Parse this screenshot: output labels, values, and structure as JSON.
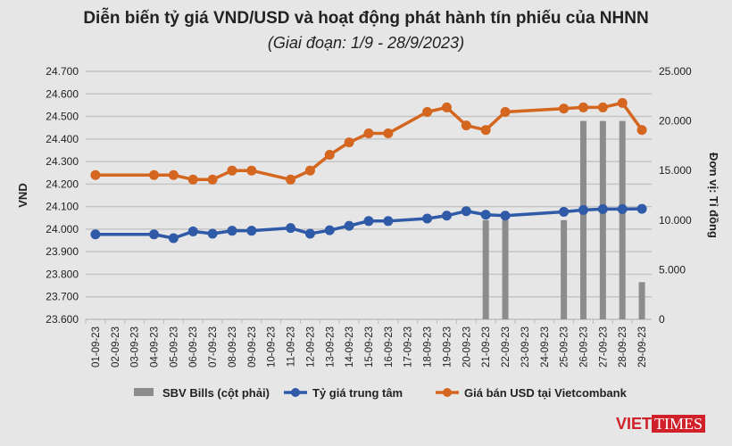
{
  "title": "Diễn biến tỷ giá VND/USD và hoạt động phát hành tín phiếu của NHNN",
  "subtitle": "(Giai đoạn: 1/9 - 28/9/2023)",
  "logo": "VIETTIMES",
  "chart_data": {
    "type": "bar+line",
    "categories": [
      "01-09-23",
      "02-09-23",
      "03-09-23",
      "04-09-23",
      "05-09-23",
      "06-09-23",
      "07-09-23",
      "08-09-23",
      "09-09-23",
      "10-09-23",
      "11-09-23",
      "12-09-23",
      "13-09-23",
      "14-09-23",
      "15-09-23",
      "16-09-23",
      "17-09-23",
      "18-09-23",
      "19-09-23",
      "20-09-23",
      "21-09-23",
      "22-09-23",
      "23-09-23",
      "24-09-23",
      "25-09-23",
      "26-09-23",
      "27-09-23",
      "28-09-23",
      "29-09-23"
    ],
    "ylabel": "VND",
    "y2label": "Đơn vị: Tỉ đồng",
    "ylim": [
      23600,
      24700
    ],
    "y2lim": [
      0,
      25000
    ],
    "yticks": [
      "23.600",
      "23.700",
      "23.800",
      "23.900",
      "24.000",
      "24.100",
      "24.200",
      "24.300",
      "24.400",
      "24.500",
      "24.600",
      "24.700"
    ],
    "y2ticks": [
      "0",
      "5.000",
      "10.000",
      "15.000",
      "20.000",
      "25.000"
    ],
    "grid": true,
    "legend_position": "bottom",
    "series": [
      {
        "name": "SBV Bills (cột phải)",
        "type": "bar",
        "axis": "right",
        "color": "#8c8c8c",
        "values": [
          null,
          null,
          null,
          null,
          null,
          null,
          null,
          null,
          null,
          null,
          null,
          null,
          null,
          null,
          null,
          null,
          null,
          null,
          null,
          null,
          10000,
          10000,
          null,
          null,
          10000,
          20000,
          20000,
          20000,
          3750
        ]
      },
      {
        "name": "Tỷ giá trung tâm",
        "type": "line",
        "axis": "left",
        "color": "#2e5aa8",
        "values": [
          23977,
          null,
          null,
          23977,
          23960,
          23990,
          23980,
          23993,
          23993,
          null,
          24005,
          23980,
          23995,
          24015,
          24036,
          24036,
          null,
          24047,
          24060,
          24080,
          24064,
          24060,
          null,
          null,
          24077,
          24085,
          24089,
          24089,
          24090
        ]
      },
      {
        "name": "Giá bán USD tại Vietcombank",
        "type": "line",
        "axis": "left",
        "color": "#d4661f",
        "values": [
          24240,
          null,
          null,
          24240,
          24240,
          24220,
          24220,
          24260,
          24260,
          null,
          24220,
          24260,
          24330,
          24385,
          24425,
          24425,
          null,
          24520,
          24540,
          24460,
          24440,
          24520,
          null,
          null,
          24535,
          24540,
          24540,
          24560,
          24440
        ]
      }
    ]
  }
}
